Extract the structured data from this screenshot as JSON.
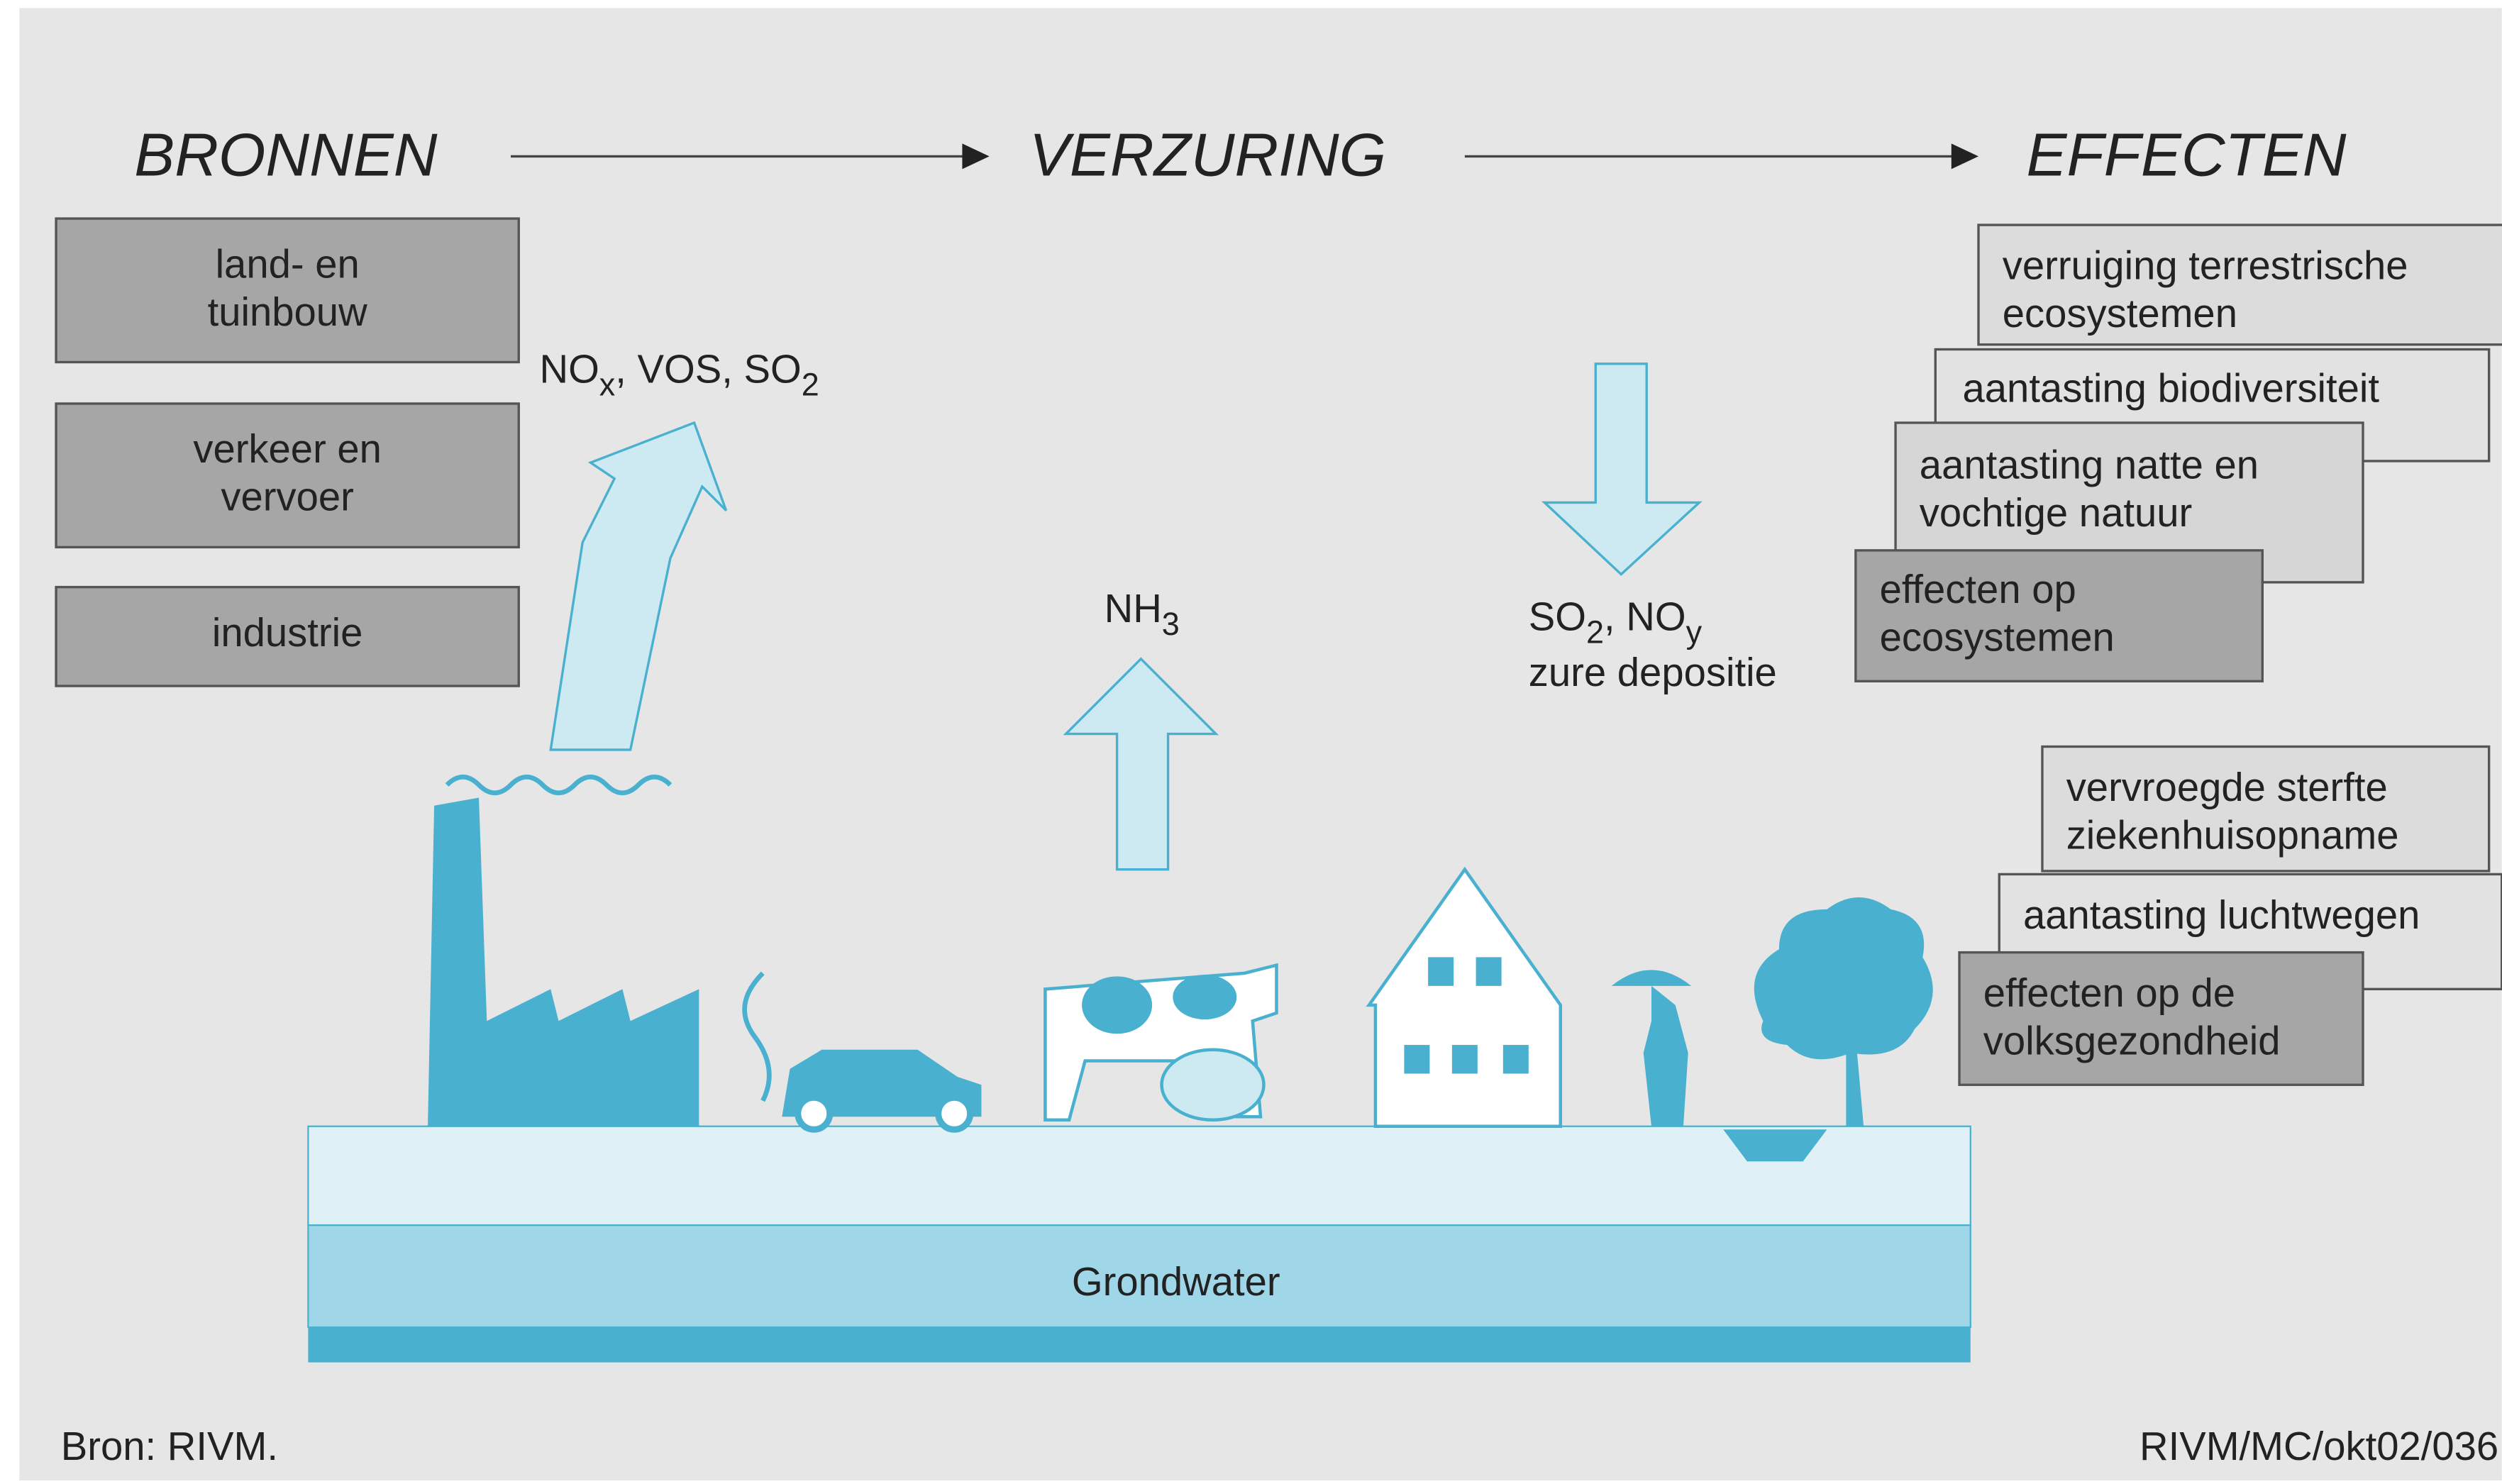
{
  "header": {
    "sources": "BRONNEN",
    "acidification": "VERZURING",
    "effects": "EFFECTEN"
  },
  "sources": [
    [
      "land- en",
      "tuinbouw"
    ],
    [
      "verkeer en",
      "vervoer"
    ],
    [
      "industrie"
    ]
  ],
  "emissions": [
    "NO",
    "x",
    ", VOS, SO",
    "2"
  ],
  "ammonia": [
    "NH",
    "3"
  ],
  "deposition": {
    "line1": [
      "SO",
      "2",
      ", NO",
      "y"
    ],
    "line2": "zure depositie"
  },
  "ecosystem_effects": [
    [
      "verruiging terrestrische",
      "ecosystemen"
    ],
    [
      "aantasting biodiversiteit"
    ],
    [
      "aantasting natte en",
      "vochtige natuur"
    ],
    [
      "effecten op",
      "ecosystemen"
    ]
  ],
  "health_effects": [
    [
      "vervroegde sterfte",
      "ziekenhuisopname"
    ],
    [
      "aantasting luchtwegen"
    ],
    [
      "effecten op de",
      "volksgezondheid"
    ]
  ],
  "groundwater": "Grondwater",
  "source": "Bron: RIVM.",
  "code": "RIVM/MC/okt02/036"
}
